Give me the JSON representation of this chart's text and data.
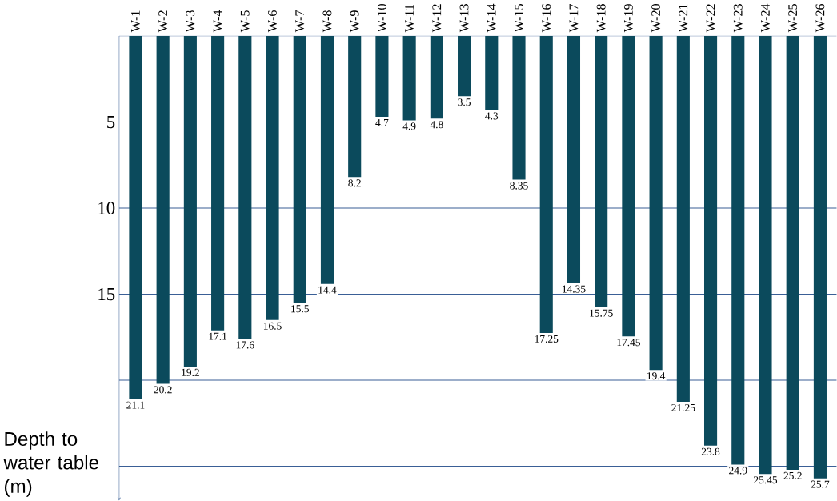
{
  "chart_data": {
    "type": "bar",
    "categories": [
      "W-1",
      "W-2",
      "W-3",
      "W-4",
      "W-5",
      "W-6",
      "W-7",
      "W-8",
      "W-9",
      "W-10",
      "W-11",
      "W-12",
      "W-13",
      "W-14",
      "W-15",
      "W-16",
      "W-17",
      "W-18",
      "W-19",
      "W-20",
      "W-21",
      "W-22",
      "W-23",
      "W-24",
      "W-25",
      "W-26"
    ],
    "values": [
      21.1,
      20.2,
      19.2,
      17.1,
      17.6,
      16.5,
      15.5,
      14.4,
      8.2,
      4.7,
      4.9,
      4.8,
      3.5,
      4.3,
      8.35,
      17.25,
      14.35,
      15.75,
      17.45,
      19.4,
      21.25,
      23.8,
      24.9,
      25.45,
      25.2,
      25.7
    ],
    "value_labels": [
      "21.1",
      "20.2",
      "19.2",
      "17.1",
      "17.6",
      "16.5",
      "15.5",
      "14.4",
      "8.2",
      "4.7",
      "4.9",
      "4.8",
      "3.5",
      "4.3",
      "8.35",
      "17.25",
      "14.35",
      "15.75",
      "17.45",
      "19.4",
      "21.25",
      "23.8",
      "24.9",
      "25.45",
      "25.2",
      "25.7"
    ],
    "color": "#0b4a5c",
    "ylabel": "Depth to water table (m)",
    "ylim": [
      27,
      0
    ],
    "yticks": [
      5,
      10,
      15,
      {
        "value": 20,
        "label": null
      },
      {
        "value": 25,
        "label": null
      }
    ],
    "grid": "y"
  }
}
